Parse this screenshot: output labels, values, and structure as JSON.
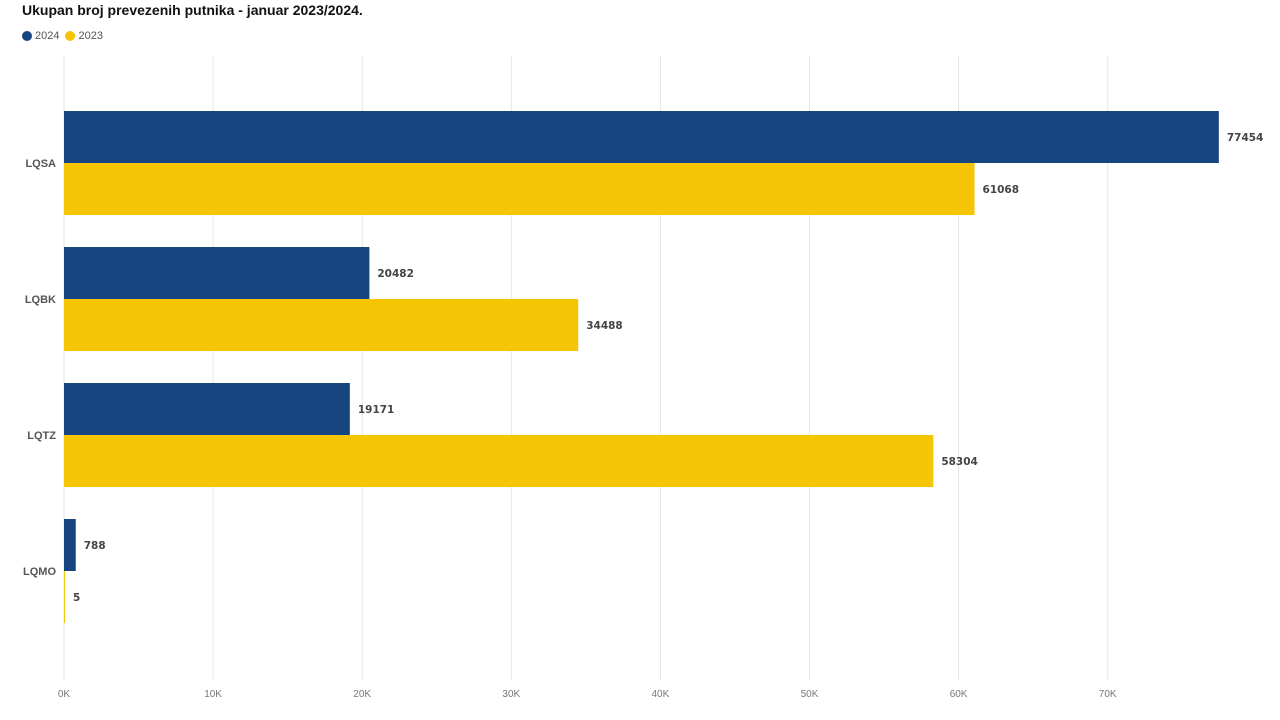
{
  "chart_data": {
    "type": "bar",
    "orientation": "horizontal",
    "title": "Ukupan broj prevezenih putnika - januar 2023/2024.",
    "categories": [
      "LQSA",
      "LQBK",
      "LQTZ",
      "LQMO"
    ],
    "series": [
      {
        "name": "2024",
        "color": "#174580",
        "values": [
          77454,
          20482,
          19171,
          788
        ]
      },
      {
        "name": "2023",
        "color": "#F6C506",
        "values": [
          61068,
          34488,
          58304,
          5
        ]
      }
    ],
    "xlim": [
      0,
      78000
    ],
    "xticks": [
      0,
      10000,
      20000,
      30000,
      40000,
      50000,
      60000,
      70000
    ],
    "xtick_labels": [
      "0K",
      "10K",
      "20K",
      "30K",
      "40K",
      "50K",
      "60K",
      "70K"
    ],
    "grid": true,
    "legend_position": "top-left"
  }
}
